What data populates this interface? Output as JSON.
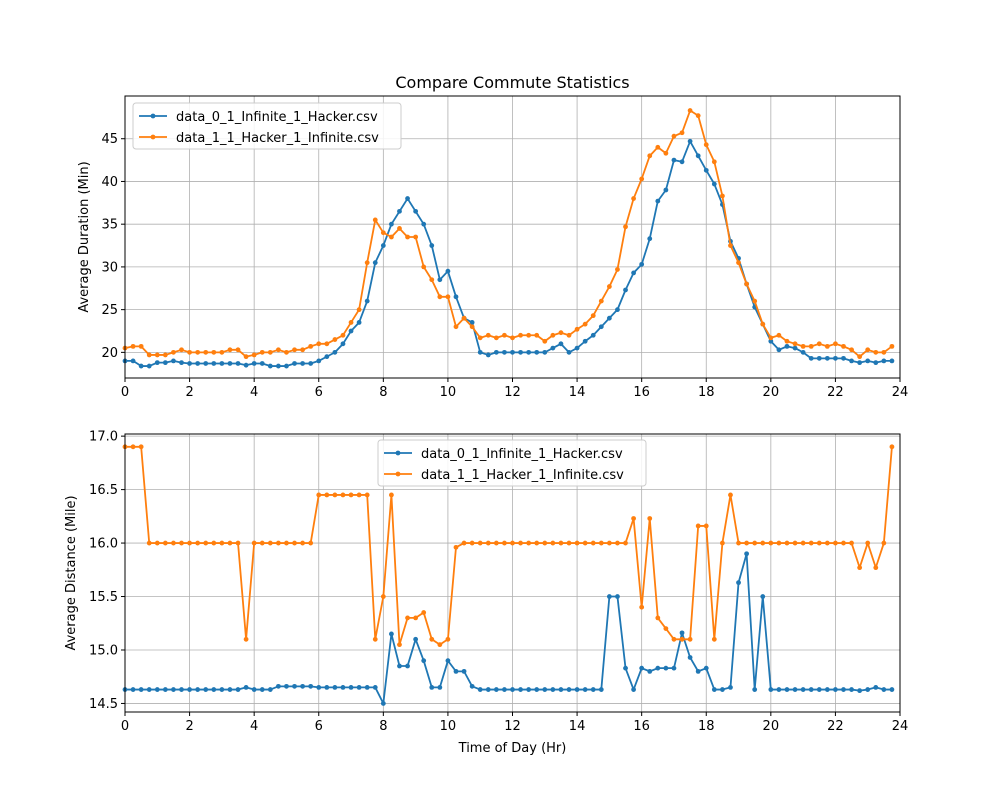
{
  "figure": {
    "title": "Compare Commute Statistics"
  },
  "chart_data": [
    {
      "type": "line",
      "ylabel": "Average Duration (Min)",
      "xlabel": "",
      "xlim": [
        0,
        24
      ],
      "ylim": [
        17,
        50
      ],
      "xticks": [
        0,
        2,
        4,
        6,
        8,
        10,
        12,
        14,
        16,
        18,
        20,
        22,
        24
      ],
      "yticks": [
        20,
        25,
        30,
        35,
        40,
        45
      ],
      "grid": true,
      "legend_position": "top-left",
      "series": [
        {
          "name": "data_0_1_Infinite_1_Hacker.csv",
          "color": "#1f77b4",
          "x": [
            0,
            0.25,
            0.5,
            0.75,
            1,
            1.25,
            1.5,
            1.75,
            2,
            2.25,
            2.5,
            2.75,
            3,
            3.25,
            3.5,
            3.75,
            4,
            4.25,
            4.5,
            4.75,
            5,
            5.25,
            5.5,
            5.75,
            6,
            6.25,
            6.5,
            6.75,
            7,
            7.25,
            7.5,
            7.75,
            8,
            8.25,
            8.5,
            8.75,
            9,
            9.25,
            9.5,
            9.75,
            10,
            10.25,
            10.5,
            10.75,
            11,
            11.25,
            11.5,
            11.75,
            12,
            12.25,
            12.5,
            12.75,
            13,
            13.25,
            13.5,
            13.75,
            14,
            14.25,
            14.5,
            14.75,
            15,
            15.25,
            15.5,
            15.75,
            16,
            16.25,
            16.5,
            16.75,
            17,
            17.25,
            17.5,
            17.75,
            18,
            18.25,
            18.5,
            18.75,
            19,
            19.25,
            19.5,
            19.75,
            20,
            20.25,
            20.5,
            20.75,
            21,
            21.25,
            21.5,
            21.75,
            22,
            22.25,
            22.5,
            22.75,
            23,
            23.25,
            23.5,
            23.75
          ],
          "y": [
            19,
            19,
            18.4,
            18.4,
            18.8,
            18.8,
            19,
            18.8,
            18.7,
            18.7,
            18.7,
            18.7,
            18.7,
            18.7,
            18.7,
            18.5,
            18.7,
            18.7,
            18.4,
            18.4,
            18.4,
            18.7,
            18.7,
            18.7,
            19,
            19.5,
            20,
            21,
            22.5,
            23.5,
            26,
            30.5,
            32.5,
            35,
            36.5,
            38,
            36.5,
            35,
            32.5,
            28.5,
            29.5,
            26.5,
            24,
            23.5,
            20,
            19.7,
            20,
            20,
            20,
            20,
            20,
            20,
            20,
            20.5,
            21,
            20,
            20.5,
            21.3,
            22,
            23,
            24,
            25,
            27.3,
            29.3,
            30.3,
            33.3,
            37.7,
            39,
            42.5,
            42.3,
            44.7,
            43,
            41.3,
            39.7,
            37.3,
            33,
            31,
            28,
            25.3,
            23.3,
            21.3,
            20.3,
            20.7,
            20.5,
            20,
            19.3,
            19.3,
            19.3,
            19.3,
            19.3,
            19,
            18.8,
            19,
            18.8,
            19,
            19
          ]
        },
        {
          "name": "data_1_1_Hacker_1_Infinite.csv",
          "color": "#ff7f0e",
          "x": [
            0,
            0.25,
            0.5,
            0.75,
            1,
            1.25,
            1.5,
            1.75,
            2,
            2.25,
            2.5,
            2.75,
            3,
            3.25,
            3.5,
            3.75,
            4,
            4.25,
            4.5,
            4.75,
            5,
            5.25,
            5.5,
            5.75,
            6,
            6.25,
            6.5,
            6.75,
            7,
            7.25,
            7.5,
            7.75,
            8,
            8.25,
            8.5,
            8.75,
            9,
            9.25,
            9.5,
            9.75,
            10,
            10.25,
            10.5,
            10.75,
            11,
            11.25,
            11.5,
            11.75,
            12,
            12.25,
            12.5,
            12.75,
            13,
            13.25,
            13.5,
            13.75,
            14,
            14.25,
            14.5,
            14.75,
            15,
            15.25,
            15.5,
            15.75,
            16,
            16.25,
            16.5,
            16.75,
            17,
            17.25,
            17.5,
            17.75,
            18,
            18.25,
            18.5,
            18.75,
            19,
            19.25,
            19.5,
            19.75,
            20,
            20.25,
            20.5,
            20.75,
            21,
            21.25,
            21.5,
            21.75,
            22,
            22.25,
            22.5,
            22.75,
            23,
            23.25,
            23.5,
            23.75
          ],
          "y": [
            20.5,
            20.7,
            20.7,
            19.7,
            19.7,
            19.7,
            20,
            20.3,
            20,
            20,
            20,
            20,
            20,
            20.3,
            20.3,
            19.5,
            19.7,
            20,
            20,
            20.3,
            20,
            20.3,
            20.3,
            20.7,
            21,
            21,
            21.5,
            22,
            23.5,
            25,
            30.5,
            35.5,
            34,
            33.5,
            34.5,
            33.5,
            33.5,
            30,
            28.5,
            26.5,
            26.5,
            23,
            24,
            23,
            21.7,
            22,
            21.7,
            22,
            21.7,
            22,
            22,
            22,
            21.3,
            22,
            22.3,
            22,
            22.7,
            23.3,
            24.3,
            26,
            27.7,
            29.7,
            34.7,
            38,
            40.3,
            43,
            44,
            43.3,
            45.3,
            45.7,
            48.3,
            47.7,
            44.3,
            42.3,
            38.3,
            32.5,
            30.5,
            28,
            26,
            23.3,
            21.7,
            22,
            21.3,
            21,
            20.7,
            20.7,
            21,
            20.7,
            21,
            20.7,
            20.3,
            19.5,
            20.3,
            20,
            20,
            20.7
          ]
        }
      ]
    },
    {
      "type": "line",
      "ylabel": "Average Distance (Mile)",
      "xlabel": "Time of Day (Hr)",
      "xlim": [
        0,
        24
      ],
      "ylim": [
        14.42,
        17.02
      ],
      "xticks": [
        0,
        2,
        4,
        6,
        8,
        10,
        12,
        14,
        16,
        18,
        20,
        22,
        24
      ],
      "yticks": [
        "14.5",
        "15.0",
        "15.5",
        "16.0",
        "16.5",
        "17.0"
      ],
      "grid": true,
      "legend_position": "top-center",
      "series": [
        {
          "name": "data_0_1_Infinite_1_Hacker.csv",
          "color": "#1f77b4",
          "x": [
            0,
            0.25,
            0.5,
            0.75,
            1,
            1.25,
            1.5,
            1.75,
            2,
            2.25,
            2.5,
            2.75,
            3,
            3.25,
            3.5,
            3.75,
            4,
            4.25,
            4.5,
            4.75,
            5,
            5.25,
            5.5,
            5.75,
            6,
            6.25,
            6.5,
            6.75,
            7,
            7.25,
            7.5,
            7.75,
            8,
            8.25,
            8.5,
            8.75,
            9,
            9.25,
            9.5,
            9.75,
            10,
            10.25,
            10.5,
            10.75,
            11,
            11.25,
            11.5,
            11.75,
            12,
            12.25,
            12.5,
            12.75,
            13,
            13.25,
            13.5,
            13.75,
            14,
            14.25,
            14.5,
            14.75,
            15,
            15.25,
            15.5,
            15.75,
            16,
            16.25,
            16.5,
            16.75,
            17,
            17.25,
            17.5,
            17.75,
            18,
            18.25,
            18.5,
            18.75,
            19,
            19.25,
            19.5,
            19.75,
            20,
            20.25,
            20.5,
            20.75,
            21,
            21.25,
            21.5,
            21.75,
            22,
            22.25,
            22.5,
            22.75,
            23,
            23.25,
            23.5,
            23.75
          ],
          "y": [
            14.63,
            14.63,
            14.63,
            14.63,
            14.63,
            14.63,
            14.63,
            14.63,
            14.63,
            14.63,
            14.63,
            14.63,
            14.63,
            14.63,
            14.63,
            14.65,
            14.63,
            14.63,
            14.63,
            14.66,
            14.66,
            14.66,
            14.66,
            14.66,
            14.65,
            14.65,
            14.65,
            14.65,
            14.65,
            14.65,
            14.65,
            14.65,
            14.5,
            15.15,
            14.85,
            14.85,
            15.1,
            14.9,
            14.65,
            14.65,
            14.9,
            14.8,
            14.8,
            14.66,
            14.63,
            14.63,
            14.63,
            14.63,
            14.63,
            14.63,
            14.63,
            14.63,
            14.63,
            14.63,
            14.63,
            14.63,
            14.63,
            14.63,
            14.63,
            14.63,
            15.5,
            15.5,
            14.83,
            14.63,
            14.83,
            14.8,
            14.83,
            14.83,
            14.83,
            15.16,
            14.93,
            14.8,
            14.83,
            14.63,
            14.63,
            14.65,
            15.63,
            15.9,
            14.63,
            15.5,
            14.63,
            14.63,
            14.63,
            14.63,
            14.63,
            14.63,
            14.63,
            14.63,
            14.63,
            14.63,
            14.63,
            14.62,
            14.63,
            14.65,
            14.63,
            14.63
          ]
        },
        {
          "name": "data_1_1_Hacker_1_Infinite.csv",
          "color": "#ff7f0e",
          "x": [
            0,
            0.25,
            0.5,
            0.75,
            1,
            1.25,
            1.5,
            1.75,
            2,
            2.25,
            2.5,
            2.75,
            3,
            3.25,
            3.5,
            3.75,
            4,
            4.25,
            4.5,
            4.75,
            5,
            5.25,
            5.5,
            5.75,
            6,
            6.25,
            6.5,
            6.75,
            7,
            7.25,
            7.5,
            7.75,
            8,
            8.25,
            8.5,
            8.75,
            9,
            9.25,
            9.5,
            9.75,
            10,
            10.25,
            10.5,
            10.75,
            11,
            11.25,
            11.5,
            11.75,
            12,
            12.25,
            12.5,
            12.75,
            13,
            13.25,
            13.5,
            13.75,
            14,
            14.25,
            14.5,
            14.75,
            15,
            15.25,
            15.5,
            15.75,
            16,
            16.25,
            16.5,
            16.75,
            17,
            17.25,
            17.5,
            17.75,
            18,
            18.25,
            18.5,
            18.75,
            19,
            19.25,
            19.5,
            19.75,
            20,
            20.25,
            20.5,
            20.75,
            21,
            21.25,
            21.5,
            21.75,
            22,
            22.25,
            22.5,
            22.75,
            23,
            23.25,
            23.5,
            23.75
          ],
          "y": [
            16.9,
            16.9,
            16.9,
            16,
            16,
            16,
            16,
            16,
            16,
            16,
            16,
            16,
            16,
            16,
            16,
            15.1,
            16,
            16,
            16,
            16,
            16,
            16,
            16,
            16,
            16.45,
            16.45,
            16.45,
            16.45,
            16.45,
            16.45,
            16.45,
            15.1,
            15.5,
            16.45,
            15.05,
            15.3,
            15.3,
            15.35,
            15.1,
            15.05,
            15.1,
            15.96,
            16,
            16,
            16,
            16,
            16,
            16,
            16,
            16,
            16,
            16,
            16,
            16,
            16,
            16,
            16,
            16,
            16,
            16,
            16,
            16,
            16,
            16.23,
            15.4,
            16.23,
            15.3,
            15.2,
            15.1,
            15.1,
            15.1,
            16.16,
            16.16,
            15.1,
            16,
            16.45,
            16,
            16,
            16,
            16,
            16,
            16,
            16,
            16,
            16,
            16,
            16,
            16,
            16,
            16,
            16,
            15.77,
            16,
            15.77,
            16,
            16.9
          ]
        }
      ]
    }
  ]
}
